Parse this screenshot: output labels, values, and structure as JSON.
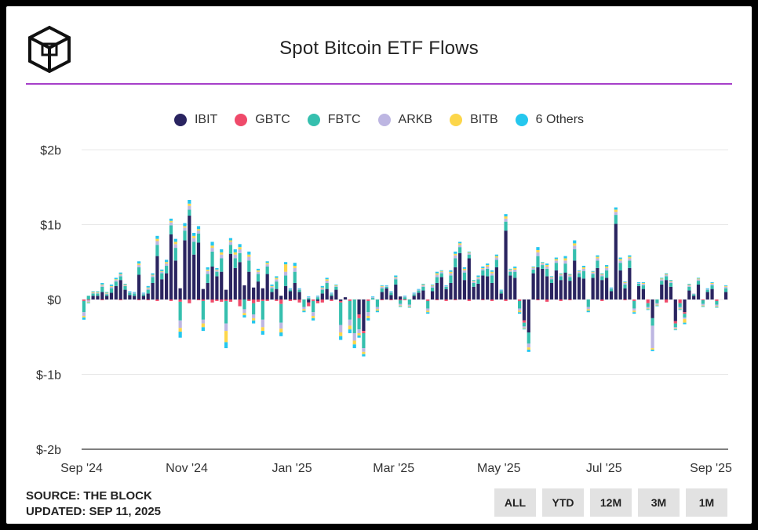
{
  "header": {
    "title": "Spot Bitcoin ETF Flows"
  },
  "legend": [
    {
      "label": "IBIT",
      "color": "#2a2460"
    },
    {
      "label": "GBTC",
      "color": "#ef4a6a"
    },
    {
      "label": "FBTC",
      "color": "#35bfae"
    },
    {
      "label": "ARKB",
      "color": "#bdb6e2"
    },
    {
      "label": "BITB",
      "color": "#fcd64a"
    },
    {
      "label": "6 Others",
      "color": "#25c7ee"
    }
  ],
  "footer": {
    "source": "SOURCE: THE BLOCK",
    "updated": "UPDATED: SEP 11, 2025"
  },
  "range_buttons": [
    "ALL",
    "YTD",
    "12M",
    "3M",
    "1M"
  ],
  "chart_data": {
    "type": "bar",
    "stacked": true,
    "title": "Spot Bitcoin ETF Flows",
    "y_unit": "USD",
    "ylim": [
      -2,
      2
    ],
    "y_ticks": [
      "$2b",
      "$1b",
      "$0",
      "$-1b",
      "$-2b"
    ],
    "y_tick_values": [
      2,
      1,
      0,
      -1,
      -2
    ],
    "x_range": [
      "2024-09-01",
      "2025-09-11"
    ],
    "x_ticks": [
      "Sep '24",
      "Nov '24",
      "Jan '25",
      "Mar '25",
      "May '25",
      "Jul '25",
      "Sep '25"
    ],
    "x_tick_dates": [
      "2024-09-01",
      "2024-11-01",
      "2025-01-01",
      "2025-03-01",
      "2025-05-01",
      "2025-07-01",
      "2025-09-01"
    ],
    "grid": true,
    "legend_position": "top-center",
    "series": [
      {
        "name": "IBIT",
        "values": [
          0.0,
          0.0,
          0.05,
          0.05,
          0.1,
          0.05,
          0.09,
          0.18,
          0.26,
          0.13,
          0.06,
          0.05,
          0.33,
          0.05,
          0.08,
          0.22,
          0.58,
          0.27,
          0.35,
          0.87,
          0.52,
          0.15,
          0.79,
          1.12,
          0.6,
          0.76,
          0.14,
          0.22,
          0.44,
          0.31,
          0.37,
          0.13,
          0.61,
          0.42,
          0.5,
          0.19,
          0.37,
          0.16,
          0.24,
          0.15,
          0.34,
          0.1,
          0.14,
          0.05,
          0.18,
          0.11,
          0.22,
          0.1,
          0.0,
          -0.04,
          0.0,
          -0.02,
          0.08,
          0.14,
          0.05,
          0.13,
          -0.02,
          0.03,
          0.0,
          0.0,
          -0.2,
          -0.42,
          0.0,
          0.0,
          0.0,
          0.1,
          0.15,
          0.06,
          0.2,
          0.04,
          0.0,
          0.0,
          0.05,
          0.09,
          0.12,
          0.0,
          0.11,
          0.22,
          0.3,
          0.14,
          0.22,
          0.43,
          0.62,
          0.26,
          0.55,
          0.17,
          0.21,
          0.32,
          0.31,
          0.22,
          0.43,
          0.08,
          0.92,
          0.32,
          0.29,
          0.0,
          -0.28,
          -0.44,
          0.35,
          0.43,
          0.41,
          0.31,
          0.22,
          0.39,
          0.26,
          0.36,
          0.25,
          0.52,
          0.3,
          0.28,
          0.0,
          0.29,
          0.42,
          0.26,
          0.29,
          0.11,
          1.01,
          0.39,
          0.15,
          0.42,
          0.0,
          0.18,
          0.14,
          0.0,
          -0.25,
          0.0,
          0.2,
          0.26,
          0.17,
          -0.29,
          0.0,
          -0.17,
          0.12,
          0.05,
          0.2,
          0.0,
          0.1,
          0.14,
          0.0,
          0.0,
          0.1
        ]
      },
      {
        "name": "GBTC",
        "values": [
          -0.02,
          -0.01,
          0.0,
          0.0,
          -0.01,
          0.0,
          0.0,
          0.0,
          -0.01,
          0.0,
          0.0,
          0.0,
          -0.01,
          0.0,
          -0.01,
          0.0,
          -0.02,
          0.0,
          0.0,
          -0.02,
          0.0,
          -0.03,
          0.0,
          -0.05,
          0.0,
          -0.01,
          -0.02,
          0.0,
          -0.04,
          -0.02,
          -0.03,
          -0.02,
          -0.03,
          0.0,
          -0.09,
          0.0,
          -0.02,
          -0.05,
          -0.03,
          -0.02,
          -0.02,
          0.0,
          -0.02,
          -0.06,
          0.0,
          -0.02,
          -0.01,
          -0.04,
          0.0,
          -0.05,
          -0.02,
          -0.03,
          -0.04,
          0.0,
          -0.02,
          0.0,
          -0.02,
          0.0,
          -0.02,
          0.0,
          -0.05,
          -0.03,
          -0.02,
          0.0,
          0.0,
          -0.01,
          0.0,
          -0.01,
          0.0,
          -0.01,
          -0.01,
          0.0,
          0.0,
          0.0,
          0.0,
          -0.02,
          0.0,
          -0.01,
          0.0,
          -0.02,
          0.0,
          -0.01,
          0.0,
          0.0,
          -0.02,
          0.0,
          0.0,
          -0.01,
          0.0,
          -0.02,
          0.0,
          0.0,
          -0.02,
          0.0,
          0.0,
          -0.02,
          -0.03,
          0.0,
          0.0,
          -0.01,
          0.0,
          -0.03,
          0.0,
          0.0,
          -0.02,
          0.0,
          -0.01,
          0.0,
          0.0,
          0.0,
          0.0,
          0.0,
          0.0,
          -0.02,
          0.0,
          0.0,
          0.0,
          0.0,
          -0.01,
          0.0,
          -0.02,
          0.0,
          0.0,
          -0.05,
          0.0,
          0.0,
          0.0,
          -0.04,
          0.0,
          -0.03,
          -0.05,
          -0.02,
          0.0,
          0.0,
          0.0,
          -0.01,
          0.0,
          0.0,
          -0.02,
          0.0,
          0.0
        ]
      },
      {
        "name": "FBTC",
        "values": [
          -0.15,
          0.05,
          0.03,
          0.03,
          0.07,
          0.02,
          0.06,
          0.06,
          0.05,
          0.05,
          0.03,
          0.03,
          0.1,
          0.02,
          0.05,
          0.08,
          0.15,
          0.08,
          0.1,
          0.12,
          0.17,
          -0.25,
          0.13,
          0.08,
          0.17,
          0.12,
          -0.25,
          0.12,
          0.2,
          0.06,
          0.18,
          -0.3,
          0.12,
          0.13,
          0.12,
          -0.13,
          0.15,
          -0.15,
          0.1,
          -0.25,
          0.1,
          0.05,
          0.1,
          -0.25,
          0.14,
          0.02,
          0.15,
          0.03,
          -0.1,
          0.02,
          -0.15,
          0.03,
          0.05,
          0.08,
          0.02,
          0.04,
          -0.3,
          0.0,
          -0.25,
          -0.45,
          -0.15,
          -0.2,
          -0.15,
          0.02,
          -0.1,
          0.05,
          0.02,
          0.03,
          0.07,
          -0.05,
          0.03,
          -0.07,
          0.02,
          0.03,
          0.05,
          -0.1,
          0.05,
          0.08,
          0.05,
          0.03,
          0.1,
          0.12,
          0.08,
          0.1,
          0.05,
          0.05,
          0.06,
          0.07,
          0.1,
          0.1,
          0.1,
          0.03,
          0.12,
          0.05,
          0.08,
          -0.1,
          -0.05,
          -0.15,
          0.05,
          0.15,
          0.05,
          0.1,
          0.05,
          0.1,
          0.05,
          0.12,
          0.05,
          0.15,
          0.05,
          0.1,
          -0.1,
          0.05,
          0.1,
          0.05,
          0.1,
          0.03,
          0.12,
          0.1,
          0.05,
          0.1,
          -0.1,
          0.03,
          0.05,
          -0.05,
          -0.1,
          -0.05,
          0.05,
          0.05,
          0.05,
          -0.05,
          -0.05,
          -0.05,
          0.05,
          0.02,
          0.05,
          -0.05,
          0.03,
          0.05,
          -0.05,
          0.0,
          0.05
        ]
      },
      {
        "name": "ARKB",
        "values": [
          -0.05,
          -0.02,
          0.01,
          0.01,
          0.02,
          0.01,
          0.02,
          0.02,
          0.02,
          0.01,
          0.01,
          0.01,
          0.03,
          0.01,
          0.02,
          0.02,
          0.05,
          0.02,
          0.03,
          0.04,
          0.05,
          -0.1,
          0.04,
          0.05,
          0.05,
          0.04,
          -0.05,
          0.04,
          0.05,
          0.02,
          0.05,
          -0.1,
          0.04,
          0.05,
          0.05,
          -0.05,
          0.05,
          -0.05,
          0.03,
          -0.1,
          0.03,
          0.02,
          0.03,
          -0.08,
          0.05,
          0.01,
          0.05,
          0.01,
          -0.03,
          0.01,
          -0.05,
          0.01,
          0.02,
          0.03,
          0.01,
          0.01,
          -0.1,
          0.0,
          -0.08,
          -0.1,
          -0.05,
          -0.05,
          -0.05,
          0.01,
          -0.03,
          0.02,
          0.01,
          0.01,
          0.02,
          -0.02,
          0.01,
          -0.02,
          0.01,
          0.01,
          0.02,
          -0.03,
          0.02,
          0.03,
          0.02,
          0.01,
          0.03,
          0.04,
          0.03,
          0.03,
          0.02,
          0.02,
          0.02,
          0.02,
          0.03,
          0.03,
          0.03,
          0.01,
          0.04,
          0.02,
          0.03,
          -0.03,
          -0.02,
          -0.05,
          0.02,
          0.05,
          0.02,
          0.03,
          0.02,
          0.03,
          0.02,
          0.04,
          0.02,
          0.05,
          0.02,
          0.03,
          -0.03,
          0.02,
          0.03,
          0.02,
          0.03,
          0.01,
          0.04,
          0.03,
          0.02,
          0.03,
          -0.03,
          0.01,
          0.02,
          -0.02,
          -0.3,
          -0.02,
          0.02,
          0.02,
          0.02,
          -0.02,
          -0.02,
          -0.02,
          0.02,
          0.01,
          0.02,
          -0.02,
          0.01,
          0.02,
          -0.02,
          0.0,
          0.02
        ]
      },
      {
        "name": "BITB",
        "values": [
          -0.02,
          -0.01,
          0.01,
          0.01,
          0.01,
          0.01,
          0.01,
          0.01,
          0.01,
          0.01,
          0.0,
          0.0,
          0.02,
          0.0,
          0.01,
          0.01,
          0.03,
          0.01,
          0.02,
          0.02,
          0.03,
          -0.05,
          0.02,
          0.03,
          0.03,
          0.02,
          -0.05,
          0.02,
          0.03,
          0.01,
          0.03,
          -0.15,
          0.02,
          0.03,
          0.03,
          -0.03,
          0.03,
          -0.03,
          0.02,
          -0.05,
          0.02,
          0.01,
          0.02,
          -0.05,
          0.1,
          0.0,
          0.03,
          0.0,
          -0.02,
          0.0,
          -0.03,
          0.0,
          0.01,
          0.02,
          0.0,
          0.01,
          -0.05,
          0.0,
          -0.05,
          -0.05,
          -0.03,
          -0.03,
          -0.03,
          0.0,
          -0.02,
          0.01,
          0.0,
          0.0,
          0.01,
          -0.01,
          0.0,
          -0.01,
          0.0,
          0.0,
          0.01,
          -0.02,
          0.01,
          0.02,
          0.01,
          0.0,
          0.02,
          0.02,
          0.02,
          0.02,
          0.01,
          0.01,
          0.01,
          0.01,
          0.02,
          0.02,
          0.02,
          0.0,
          0.03,
          0.01,
          0.02,
          -0.02,
          -0.01,
          -0.03,
          0.01,
          0.03,
          0.01,
          0.02,
          0.01,
          0.02,
          0.01,
          0.03,
          0.01,
          0.03,
          0.01,
          0.02,
          -0.02,
          0.01,
          0.02,
          0.01,
          0.02,
          0.0,
          0.03,
          0.02,
          0.01,
          0.02,
          -0.02,
          0.0,
          0.01,
          -0.01,
          -0.02,
          -0.01,
          0.01,
          0.01,
          0.01,
          -0.01,
          -0.01,
          -0.05,
          0.01,
          0.0,
          0.01,
          -0.01,
          0.0,
          0.01,
          -0.01,
          0.0,
          0.01
        ]
      },
      {
        "name": "6 Others",
        "values": [
          -0.03,
          -0.01,
          0.01,
          0.01,
          0.02,
          0.01,
          0.02,
          0.02,
          0.02,
          0.01,
          0.01,
          0.01,
          0.03,
          0.01,
          0.02,
          0.02,
          0.04,
          0.02,
          0.03,
          0.03,
          0.04,
          -0.08,
          0.04,
          0.05,
          0.04,
          0.04,
          -0.05,
          0.03,
          0.05,
          0.02,
          0.04,
          -0.08,
          0.03,
          0.04,
          0.04,
          -0.03,
          0.04,
          -0.04,
          0.02,
          -0.05,
          0.02,
          0.02,
          0.02,
          -0.05,
          0.03,
          0.01,
          0.04,
          0.01,
          -0.02,
          0.01,
          -0.03,
          0.01,
          0.02,
          0.02,
          0.01,
          0.01,
          -0.05,
          0.0,
          -0.05,
          -0.05,
          -0.03,
          -0.03,
          -0.03,
          0.01,
          -0.02,
          0.01,
          0.01,
          0.01,
          0.02,
          -0.01,
          0.01,
          -0.01,
          0.01,
          0.01,
          0.01,
          -0.02,
          0.01,
          0.02,
          0.01,
          0.01,
          0.02,
          0.03,
          0.02,
          0.02,
          0.01,
          0.01,
          0.02,
          0.02,
          0.02,
          0.02,
          0.02,
          0.01,
          0.03,
          0.01,
          0.02,
          -0.02,
          -0.01,
          -0.03,
          0.01,
          0.04,
          0.01,
          0.02,
          0.01,
          0.02,
          0.01,
          0.03,
          0.01,
          0.04,
          0.01,
          0.02,
          -0.02,
          0.01,
          0.02,
          0.01,
          0.02,
          0.01,
          0.03,
          0.02,
          0.01,
          0.02,
          -0.02,
          0.01,
          0.01,
          -0.01,
          -0.02,
          -0.01,
          0.01,
          0.01,
          0.01,
          -0.01,
          -0.01,
          -0.02,
          0.01,
          0.0,
          0.01,
          -0.01,
          0.01,
          0.01,
          -0.01,
          0.0,
          0.01
        ]
      }
    ]
  }
}
